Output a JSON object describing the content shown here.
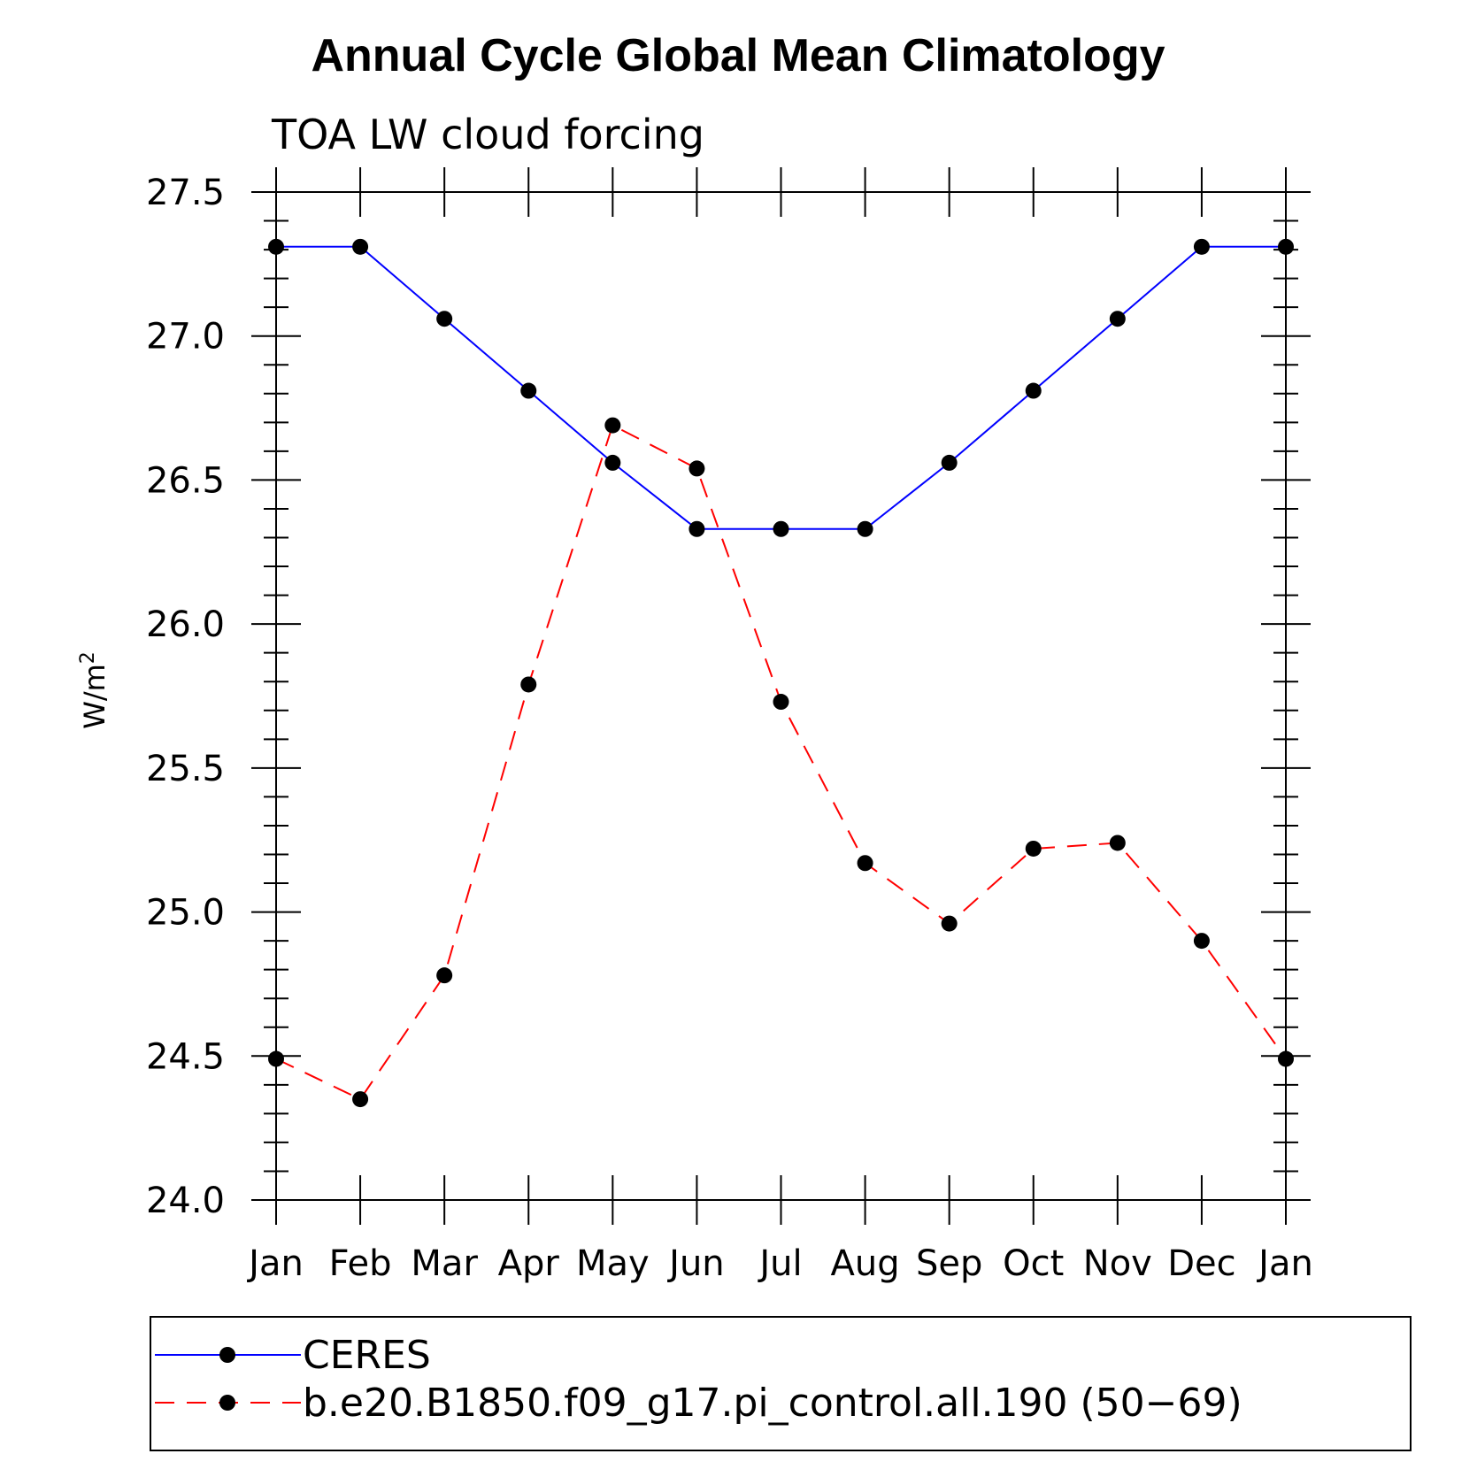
{
  "chart_data": {
    "type": "line",
    "title": "Annual Cycle Global Mean Climatology",
    "subtitle": "TOA LW cloud forcing",
    "ylabel_base": "W/m",
    "ylabel_sup": "2",
    "xlabel": "",
    "categories": [
      "Jan",
      "Feb",
      "Mar",
      "Apr",
      "May",
      "Jun",
      "Jul",
      "Aug",
      "Sep",
      "Oct",
      "Nov",
      "Dec",
      "Jan"
    ],
    "ylim": [
      24.0,
      27.5
    ],
    "yticks": [
      "24.0",
      "24.5",
      "25.0",
      "25.5",
      "26.0",
      "26.5",
      "27.0",
      "27.5"
    ],
    "series": [
      {
        "name": "CERES",
        "color": "#0000ff",
        "dash": "solid",
        "values": [
          27.31,
          27.31,
          27.06,
          26.81,
          26.56,
          26.33,
          26.33,
          26.33,
          26.56,
          26.81,
          27.06,
          27.31,
          27.31
        ]
      },
      {
        "name": "b.e20.B1850.f09_g17.pi_control.all.190 (50−69)",
        "color": "#ff0000",
        "dash": "dashed",
        "values": [
          24.49,
          24.35,
          24.78,
          25.79,
          26.69,
          26.54,
          25.73,
          25.17,
          24.96,
          25.22,
          25.24,
          24.9,
          24.49
        ]
      }
    ],
    "legend_position": "bottom"
  }
}
